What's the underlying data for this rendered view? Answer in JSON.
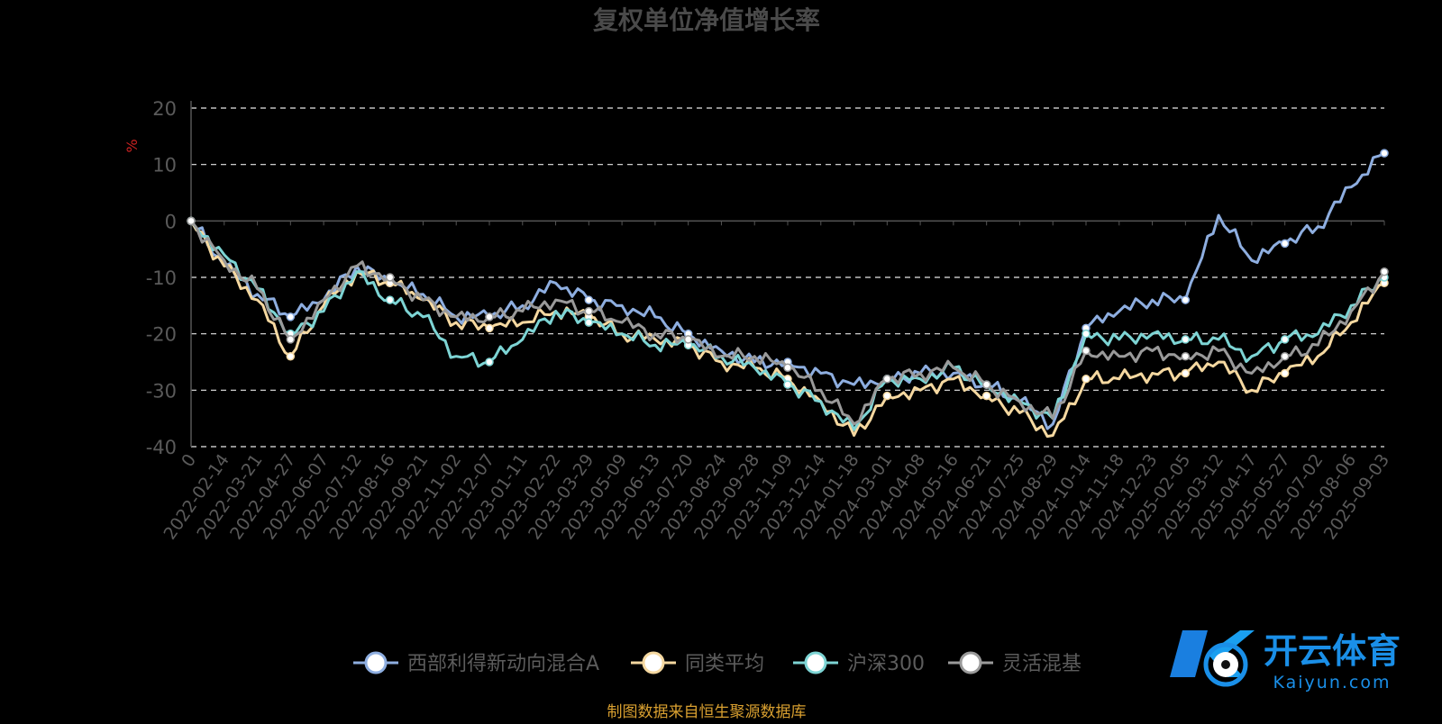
{
  "chart_data": {
    "type": "line",
    "title": "复权单位净值增长率",
    "ylabel": "%",
    "ylim": [
      -40,
      20
    ],
    "yticks": [
      20,
      10,
      0,
      -10,
      -20,
      -30,
      -40
    ],
    "grid": true,
    "legend_position": "bottom",
    "categories": [
      "0",
      "2022-02-14",
      "2022-03-21",
      "2022-04-27",
      "2022-06-07",
      "2022-07-12",
      "2022-08-16",
      "2022-09-21",
      "2022-11-02",
      "2022-12-07",
      "2023-01-11",
      "2023-02-22",
      "2023-03-29",
      "2023-05-09",
      "2023-06-13",
      "2023-07-20",
      "2023-08-24",
      "2023-09-28",
      "2023-11-09",
      "2023-12-14",
      "2024-01-18",
      "2024-03-01",
      "2024-04-08",
      "2024-05-16",
      "2024-06-21",
      "2024-07-25",
      "2024-08-29",
      "2024-10-14",
      "2024-11-18",
      "2024-12-23",
      "2025-02-05",
      "2025-03-12",
      "2025-04-17",
      "2025-05-27",
      "2025-07-02",
      "2025-08-06",
      "2025-09-03"
    ],
    "series": [
      {
        "name": "西部利得新动向混合A",
        "color": "#8eaee0",
        "values": [
          0,
          -8,
          -13,
          -17,
          -14,
          -8,
          -11,
          -13,
          -17,
          -17,
          -15,
          -11,
          -14,
          -15,
          -17,
          -20,
          -23,
          -25,
          -25,
          -27,
          -29,
          -28,
          -27,
          -27,
          -29,
          -32,
          -36,
          -19,
          -16,
          -14,
          -14,
          1,
          -7,
          -4,
          -1,
          6,
          12
        ]
      },
      {
        "name": "同类平均",
        "color": "#f5d8a0",
        "values": [
          0,
          -8,
          -14,
          -24,
          -15,
          -9,
          -11,
          -14,
          -18,
          -19,
          -18,
          -16,
          -17,
          -20,
          -21,
          -22,
          -25,
          -26,
          -28,
          -32,
          -38,
          -31,
          -30,
          -28,
          -31,
          -34,
          -38,
          -28,
          -28,
          -27,
          -27,
          -25,
          -30,
          -27,
          -24,
          -18,
          -11
        ]
      },
      {
        "name": "沪深300",
        "color": "#7dd4d4",
        "values": [
          0,
          -6,
          -12,
          -20,
          -16,
          -9,
          -14,
          -17,
          -24,
          -25,
          -21,
          -16,
          -18,
          -20,
          -22,
          -22,
          -24,
          -26,
          -29,
          -32,
          -37,
          -28,
          -28,
          -26,
          -29,
          -32,
          -35,
          -20,
          -21,
          -20,
          -21,
          -21,
          -24,
          -21,
          -20,
          -15,
          -10
        ]
      },
      {
        "name": "灵活混基",
        "color": "#9a9a9a",
        "values": [
          0,
          -7,
          -12,
          -21,
          -14,
          -8,
          -10,
          -14,
          -17,
          -17,
          -16,
          -14,
          -16,
          -18,
          -20,
          -21,
          -24,
          -24,
          -26,
          -30,
          -36,
          -28,
          -27,
          -26,
          -29,
          -32,
          -35,
          -23,
          -24,
          -23,
          -24,
          -23,
          -27,
          -24,
          -22,
          -16,
          -9
        ]
      }
    ]
  },
  "source_text": "制图数据来自恒生聚源数据库",
  "logo": {
    "text": "开云体育",
    "url": "Kaiyun.com",
    "letter": "K"
  }
}
